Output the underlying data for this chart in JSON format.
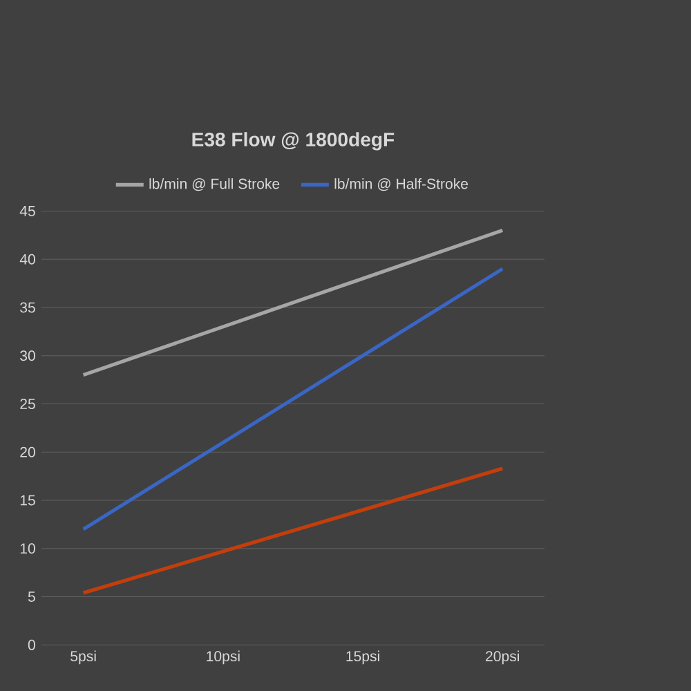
{
  "chart_data": {
    "type": "line",
    "title": "E38 Flow @ 1800degF",
    "categories": [
      "5psi",
      "10psi",
      "15psi",
      "20psi"
    ],
    "series": [
      {
        "name": "lb/min @ Full Stroke",
        "color": "#a6a6a6",
        "values": [
          28,
          33,
          38,
          43
        ]
      },
      {
        "name": "lb/min @ Half-Stroke",
        "color": "#3a66c4",
        "values": [
          12,
          21,
          30,
          39
        ]
      },
      {
        "color": "#c43e0c",
        "values": [
          5.4,
          9.7,
          14,
          18.3
        ]
      }
    ],
    "ylim": [
      0,
      45
    ],
    "yticks": [
      0,
      5,
      10,
      15,
      20,
      25,
      30,
      35,
      40,
      45
    ],
    "grid": "y",
    "legend": "top",
    "marker": "none",
    "line_style": "solid"
  }
}
